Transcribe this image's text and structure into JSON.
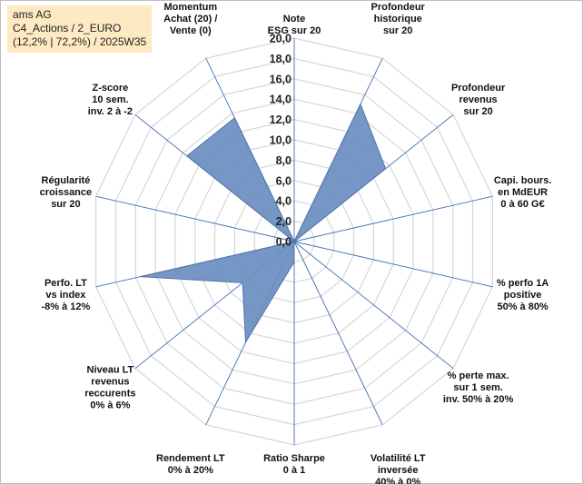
{
  "header": {
    "line1": "ams AG",
    "line2": "C4_Actions / 2_EURO",
    "line3": "(12,2% | 72,2%) / 2025W35"
  },
  "chart_data": {
    "type": "radar",
    "title": "",
    "rmin": 0,
    "rmax": 20,
    "tick_step": 2,
    "ticks": [
      "0,0",
      "2,0",
      "4,0",
      "6,0",
      "8,0",
      "10,0",
      "12,0",
      "14,0",
      "16,0",
      "18,0",
      "20,0"
    ],
    "grid": true,
    "series_color": "#6a8ec0",
    "series_border": "#4f74ab",
    "axes": [
      {
        "label": [
          "Note",
          "ESG sur 20"
        ],
        "value": 0
      },
      {
        "label": [
          "Profondeur",
          "historique",
          "sur 20"
        ],
        "value": 15
      },
      {
        "label": [
          "Profondeur",
          "revenus",
          "sur 20"
        ],
        "value": 11.5
      },
      {
        "label": [
          "Capi. bours.",
          "en MdEUR",
          "0 à 60 G€"
        ],
        "value": 0
      },
      {
        "label": [
          "% perfo 1A",
          "positive",
          "50% à 80%"
        ],
        "value": 0
      },
      {
        "label": [
          "% perte max.",
          "sur 1 sem.",
          "inv. 50% à 20%"
        ],
        "value": 0
      },
      {
        "label": [
          "Volatilité LT",
          "inversée",
          "40% à 0%"
        ],
        "value": 0
      },
      {
        "label": [
          "Ratio Sharpe",
          "0 à 1"
        ],
        "value": 2
      },
      {
        "label": [
          "Rendement LT",
          "0% à 20%"
        ],
        "value": 11
      },
      {
        "label": [
          "Niveau LT",
          "revenus",
          "reccurents",
          "0% à 6%"
        ],
        "value": 6.5
      },
      {
        "label": [
          "Perfo. LT",
          "vs index",
          "-8% à 12%"
        ],
        "value": 15.5
      },
      {
        "label": [
          "Régularité",
          "croissance",
          "sur 20"
        ],
        "value": 0
      },
      {
        "label": [
          "Z-score",
          "10 sem.",
          "inv. 2 à -2"
        ],
        "value": 13.5
      },
      {
        "label": [
          "Momentum",
          "Achat (20) /",
          "Vente (0)"
        ],
        "value": 13.5
      }
    ]
  }
}
